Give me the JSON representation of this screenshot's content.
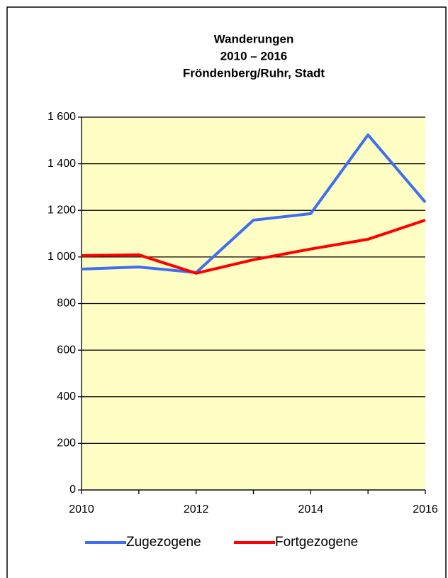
{
  "chart_data": {
    "type": "line",
    "title": [
      "Wanderungen",
      "2010 – 2016",
      "Fröndenberg/Ruhr, Stadt"
    ],
    "x": [
      2010,
      2011,
      2012,
      2013,
      2014,
      2015,
      2016
    ],
    "series": [
      {
        "name": "Zugezogene",
        "color": "#3f6ef0",
        "values": [
          948,
          957,
          933,
          1158,
          1186,
          1524,
          1235
        ]
      },
      {
        "name": "Fortgezogene",
        "color": "#ff0000",
        "values": [
          1006,
          1009,
          930,
          988,
          1034,
          1076,
          1158
        ]
      }
    ],
    "xlim": [
      2010,
      2016
    ],
    "xticks": [
      2010,
      2012,
      2014,
      2016
    ],
    "ylim": [
      0,
      1600
    ],
    "yticks": [
      0,
      200,
      400,
      600,
      800,
      {
        "value": 1000,
        "label": "1 000"
      },
      {
        "value": 1200,
        "label": "1 200"
      },
      {
        "value": 1400,
        "label": "1 400"
      },
      {
        "value": 1600,
        "label": "1 600"
      }
    ],
    "grid": true,
    "legend": "bottom",
    "plot_background": "#fdfdc4"
  }
}
